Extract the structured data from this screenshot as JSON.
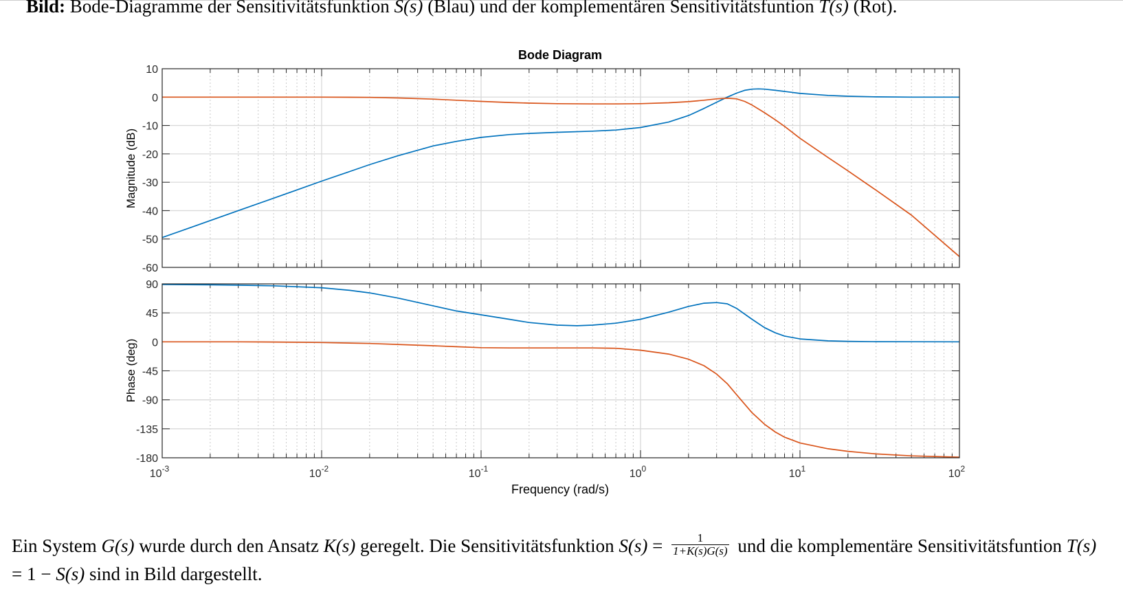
{
  "caption": {
    "label": "Bild:",
    "text_1": " Bode-Diagramme der Sensitivitätsfunktion ",
    "math_1": "S(s)",
    "text_2": " (Blau) und der komplementären Sensitivitätsfuntion ",
    "math_2": "T(s)",
    "text_3": " (Rot)."
  },
  "chart_data": {
    "type": "line",
    "title": "Bode Diagram",
    "xlabel": "Frequency  (rad/s)",
    "xscale": "log",
    "xlim": [
      0.001,
      100
    ],
    "x_ticks": [
      {
        "base": "10",
        "exp": "-3"
      },
      {
        "base": "10",
        "exp": "-2"
      },
      {
        "base": "10",
        "exp": "-1"
      },
      {
        "base": "10",
        "exp": "0"
      },
      {
        "base": "10",
        "exp": "1"
      },
      {
        "base": "10",
        "exp": "2"
      }
    ],
    "grid": true,
    "legend": "none",
    "colors": {
      "S": "#0072BD",
      "T": "#D95319"
    },
    "magnitude": {
      "ylabel": "Magnitude (dB)",
      "ylim": [
        -60,
        10
      ],
      "yticks": [
        "10",
        "0",
        "-10",
        "-20",
        "-30",
        "-40",
        "-50",
        "-60"
      ],
      "series": [
        {
          "key": "S",
          "x": [
            0.001,
            0.0015,
            0.002,
            0.003,
            0.005,
            0.007,
            0.01,
            0.015,
            0.02,
            0.03,
            0.05,
            0.07,
            0.1,
            0.15,
            0.2,
            0.3,
            0.5,
            0.7,
            1.0,
            1.5,
            2.0,
            2.5,
            3.0,
            3.5,
            4.0,
            4.5,
            5.0,
            5.5,
            6.0,
            7.0,
            8.0,
            10,
            15,
            20,
            30,
            50,
            100
          ],
          "y": [
            -49.5,
            -46.0,
            -43.5,
            -40.0,
            -35.6,
            -32.7,
            -29.6,
            -26.2,
            -23.8,
            -20.7,
            -17.2,
            -15.6,
            -14.2,
            -13.2,
            -12.8,
            -12.4,
            -12.0,
            -11.6,
            -10.7,
            -8.8,
            -6.5,
            -4.0,
            -1.8,
            0.0,
            1.4,
            2.4,
            2.8,
            2.9,
            2.8,
            2.4,
            2.0,
            1.3,
            0.6,
            0.3,
            0.1,
            0.0,
            0.0
          ]
        },
        {
          "key": "T",
          "x": [
            0.001,
            0.003,
            0.01,
            0.02,
            0.03,
            0.05,
            0.07,
            0.1,
            0.15,
            0.2,
            0.3,
            0.5,
            0.7,
            1.0,
            1.5,
            2.0,
            2.5,
            3.0,
            3.5,
            4.0,
            4.5,
            5.0,
            6.0,
            7.0,
            8.0,
            10,
            15,
            20,
            30,
            50,
            100
          ],
          "y": [
            0.0,
            0.0,
            0.0,
            -0.1,
            -0.3,
            -0.7,
            -1.1,
            -1.5,
            -1.9,
            -2.1,
            -2.3,
            -2.4,
            -2.4,
            -2.3,
            -2.0,
            -1.6,
            -1.1,
            -0.6,
            -0.4,
            -0.6,
            -1.5,
            -2.8,
            -5.5,
            -8.0,
            -10.3,
            -14.5,
            -21.3,
            -26.0,
            -32.8,
            -41.6,
            -56.2
          ]
        }
      ]
    },
    "phase": {
      "ylabel": "Phase (deg)",
      "ylim": [
        -180,
        90
      ],
      "yticks": [
        "90",
        "45",
        "0",
        "-45",
        "-90",
        "-135",
        "-180"
      ],
      "series": [
        {
          "key": "S",
          "x": [
            0.001,
            0.002,
            0.003,
            0.005,
            0.01,
            0.015,
            0.02,
            0.03,
            0.05,
            0.07,
            0.1,
            0.15,
            0.2,
            0.3,
            0.4,
            0.5,
            0.7,
            1.0,
            1.5,
            2.0,
            2.5,
            3.0,
            3.5,
            4.0,
            5.0,
            6.0,
            7.0,
            8.0,
            10,
            15,
            20,
            30,
            50,
            100
          ],
          "y": [
            89,
            88.5,
            88,
            87,
            84,
            80,
            76,
            68,
            56,
            48,
            42,
            35,
            30,
            26,
            25,
            26,
            29,
            35,
            46,
            55,
            60,
            61,
            59,
            52,
            35,
            22,
            14,
            9,
            4.5,
            1.5,
            0.8,
            0.3,
            0.1,
            0.0
          ]
        },
        {
          "key": "T",
          "x": [
            0.001,
            0.003,
            0.005,
            0.01,
            0.02,
            0.03,
            0.05,
            0.07,
            0.1,
            0.15,
            0.2,
            0.3,
            0.5,
            0.7,
            1.0,
            1.5,
            2.0,
            2.5,
            3.0,
            3.5,
            4.0,
            5.0,
            6.0,
            7.0,
            8.0,
            10,
            15,
            20,
            30,
            50,
            100
          ],
          "y": [
            0,
            0,
            -0.3,
            -1,
            -2.5,
            -4,
            -6,
            -7.5,
            -9,
            -9.5,
            -9.5,
            -9.5,
            -9.5,
            -10,
            -13,
            -19,
            -27,
            -37,
            -50,
            -65,
            -82,
            -110,
            -128,
            -140,
            -148,
            -157,
            -166,
            -170,
            -174,
            -177,
            -179
          ]
        }
      ]
    }
  },
  "paragraph": {
    "t1": "Ein System ",
    "m1": "G(s)",
    "t2": " wurde durch den Ansatz ",
    "m2": "K(s)",
    "t3": " geregelt. Die Sensitivitätsfunktion ",
    "m3": "S(s)",
    "eq": " = ",
    "frac_num": "1",
    "frac_den": "1+K(s)G(s)",
    "t4": " und die komplementäre Sensitivitätsfuntion ",
    "m4": "T(s)",
    "t5": " = 1 − ",
    "m5": "S(s)",
    "t6": " sind in Bild dargestellt."
  }
}
